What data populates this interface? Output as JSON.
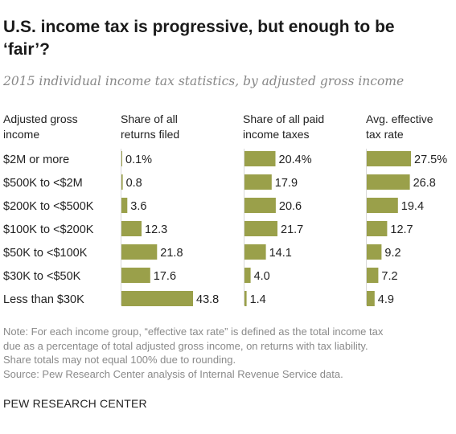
{
  "title": "U.S. income tax is progressive, but enough to be ‘fair’?",
  "subtitle": "2015 individual income tax statistics, by adjusted gross income",
  "headers": {
    "category": [
      "Adjusted gross",
      "income"
    ],
    "returns": [
      "Share of all",
      "returns filed"
    ],
    "taxes": [
      "Share of all paid",
      "income taxes"
    ],
    "rate": [
      "Avg. effective",
      "tax rate"
    ]
  },
  "chart_data": {
    "type": "bar",
    "categories": [
      "$2M or more",
      "$500K to <$2M",
      "$200K to <$500K",
      "$100K to <$200K",
      "$50K to <$100K",
      "$30K to <$50K",
      "Less than $30K"
    ],
    "series": [
      {
        "name": "Share of all returns filed",
        "values": [
          0.1,
          0.8,
          3.6,
          12.3,
          21.8,
          17.6,
          43.8
        ],
        "labels": [
          "0.1%",
          "0.8",
          "3.6",
          "12.3",
          "21.8",
          "17.6",
          "43.8"
        ]
      },
      {
        "name": "Share of all paid income taxes",
        "values": [
          20.4,
          17.9,
          20.6,
          21.7,
          14.1,
          4.0,
          1.4
        ],
        "labels": [
          "20.4%",
          "17.9",
          "20.6",
          "21.7",
          "14.1",
          "4.0",
          "1.4"
        ]
      },
      {
        "name": "Avg. effective tax rate",
        "values": [
          27.5,
          26.8,
          19.4,
          12.7,
          9.2,
          7.2,
          4.9
        ],
        "labels": [
          "27.5%",
          "26.8",
          "19.4",
          "12.7",
          "9.2",
          "7.2",
          "4.9"
        ]
      }
    ],
    "color": "#9aa04a"
  },
  "note": [
    "Note: For each income group, “effective tax rate” is defined as the total income tax",
    "due as a percentage of total adjusted gross income, on returns with tax liability.",
    "Share totals may not equal 100% due to rounding.",
    "Source: Pew Research Center analysis of Internal Revenue Service data."
  ],
  "brand": "PEW RESEARCH CENTER"
}
